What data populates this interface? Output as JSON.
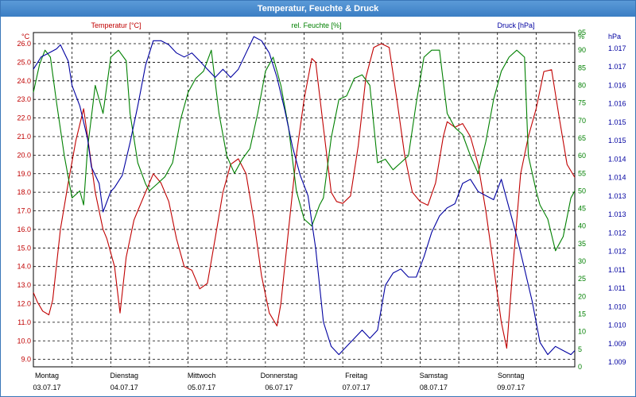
{
  "window": {
    "title": "Temperatur, Feuchte & Druck"
  },
  "colors": {
    "temperature": "#c00000",
    "humidity": "#008000",
    "pressure": "#0000a0",
    "grid": "#000000",
    "titlebar": "#3b7ec4"
  },
  "chart_data": {
    "type": "line",
    "title": "Temperatur, Feuchte & Druck",
    "grid": true,
    "days": [
      {
        "name": "Montag",
        "date": "03.07.17"
      },
      {
        "name": "Dienstag",
        "date": "04.07.17"
      },
      {
        "name": "Mittwoch",
        "date": "05.07.17"
      },
      {
        "name": "Donnerstag",
        "date": "06.07.17"
      },
      {
        "name": "Freitag",
        "date": "07.07.17"
      },
      {
        "name": "Samstag",
        "date": "08.07.17"
      },
      {
        "name": "Sonntag",
        "date": "09.07.17"
      }
    ],
    "x_unit": "day index (0 = 03.07.17 00:00)",
    "xlim": [
      0,
      7
    ],
    "axes": {
      "temperature": {
        "label": "Temperatur [°C]",
        "unit": "°C",
        "ylim": [
          8.6,
          26.6
        ],
        "ticks": [
          "9.0",
          "10.0",
          "11.0",
          "12.0",
          "13.0",
          "14.0",
          "15.0",
          "16.0",
          "17.0",
          "18.0",
          "19.0",
          "20.0",
          "21.0",
          "22.0",
          "23.0",
          "24.0",
          "25.0",
          "26.0"
        ]
      },
      "humidity": {
        "label": "rel. Feuchte [%]",
        "unit": "%",
        "ylim": [
          0,
          95
        ],
        "ticks": [
          "0",
          "5",
          "10",
          "15",
          "20",
          "25",
          "30",
          "35",
          "40",
          "45",
          "50",
          "55",
          "60",
          "65",
          "70",
          "75",
          "80",
          "85",
          "90",
          "95"
        ]
      },
      "pressure": {
        "label": "Druck [hPa]",
        "unit": "hPa",
        "ylim": [
          1008.9,
          1017.1
        ],
        "ticks": [
          "1.009",
          "1.009",
          "1.010",
          "1.010",
          "1.011",
          "1.011",
          "1.012",
          "1.012",
          "1.013",
          "1.013",
          "1.014",
          "1.014",
          "1.015",
          "1.015",
          "1.016",
          "1.016",
          "1.017",
          "1.017"
        ]
      }
    },
    "series": [
      {
        "name": "Temperatur [°C]",
        "axis": "temperature",
        "x": [
          0,
          0.05,
          0.12,
          0.2,
          0.25,
          0.35,
          0.45,
          0.55,
          0.65,
          0.7,
          0.8,
          0.9,
          0.95,
          1.05,
          1.12,
          1.2,
          1.3,
          1.35,
          1.45,
          1.55,
          1.65,
          1.75,
          1.85,
          1.95,
          2.05,
          2.15,
          2.25,
          2.35,
          2.45,
          2.55,
          2.65,
          2.75,
          2.85,
          2.95,
          3.05,
          3.15,
          3.2,
          3.3,
          3.4,
          3.5,
          3.6,
          3.65,
          3.75,
          3.85,
          3.92,
          4.0,
          4.1,
          4.2,
          4.3,
          4.4,
          4.5,
          4.6,
          4.7,
          4.8,
          4.9,
          5.0,
          5.1,
          5.2,
          5.3,
          5.35,
          5.45,
          5.55,
          5.65,
          5.75,
          5.85,
          5.95,
          6.05,
          6.12,
          6.2,
          6.3,
          6.4,
          6.5,
          6.6,
          6.7,
          6.8,
          6.9,
          7.0
        ],
        "values": [
          12.6,
          12.1,
          11.6,
          11.4,
          12.2,
          16.0,
          18.5,
          20.8,
          22.5,
          21.0,
          18.0,
          16.0,
          15.5,
          14.0,
          11.5,
          14.5,
          16.5,
          17.0,
          18.0,
          19.0,
          18.5,
          17.5,
          15.5,
          14.0,
          13.8,
          12.8,
          13.1,
          15.5,
          18.0,
          19.5,
          19.8,
          19.0,
          16.5,
          13.5,
          11.5,
          10.8,
          12.0,
          16.0,
          20.0,
          23.0,
          25.2,
          25.0,
          21.5,
          18.0,
          17.5,
          17.4,
          17.8,
          20.5,
          24.2,
          25.8,
          26.0,
          25.8,
          23.0,
          20.0,
          18.0,
          17.5,
          17.3,
          18.5,
          21.0,
          21.8,
          21.5,
          21.7,
          21.0,
          19.5,
          17.0,
          14.0,
          11.0,
          9.6,
          14.0,
          19.0,
          21.0,
          22.5,
          24.5,
          24.6,
          22.0,
          19.5,
          18.8
        ]
      },
      {
        "name": "rel. Feuchte [%]",
        "axis": "humidity",
        "x": [
          0,
          0.08,
          0.15,
          0.22,
          0.3,
          0.4,
          0.5,
          0.6,
          0.65,
          0.7,
          0.8,
          0.9,
          1.0,
          1.1,
          1.2,
          1.25,
          1.35,
          1.45,
          1.5,
          1.6,
          1.7,
          1.8,
          1.9,
          2.0,
          2.1,
          2.2,
          2.3,
          2.4,
          2.5,
          2.6,
          2.7,
          2.8,
          2.9,
          3.0,
          3.1,
          3.2,
          3.3,
          3.4,
          3.5,
          3.6,
          3.7,
          3.75,
          3.85,
          3.95,
          4.05,
          4.15,
          4.25,
          4.35,
          4.45,
          4.55,
          4.65,
          4.75,
          4.85,
          4.95,
          5.05,
          5.15,
          5.25,
          5.35,
          5.45,
          5.55,
          5.65,
          5.75,
          5.85,
          5.95,
          6.05,
          6.15,
          6.25,
          6.35,
          6.4,
          6.5,
          6.55,
          6.65,
          6.75,
          6.85,
          6.95,
          7.0
        ],
        "values": [
          78,
          86,
          90,
          88,
          75,
          60,
          48,
          50,
          46,
          62,
          80,
          72,
          88,
          90,
          87,
          72,
          58,
          52,
          50,
          52,
          54,
          58,
          70,
          78,
          82,
          84,
          90,
          72,
          60,
          55,
          59,
          62,
          72,
          84,
          88,
          80,
          68,
          50,
          42,
          40,
          46,
          48,
          65,
          76,
          77,
          82,
          83,
          80,
          58,
          59,
          56,
          58,
          60,
          75,
          88,
          90,
          90,
          72,
          68,
          66,
          60,
          55,
          64,
          76,
          84,
          88,
          90,
          88,
          60,
          50,
          46,
          42,
          33,
          37,
          48,
          50
        ]
      },
      {
        "name": "Druck [hPa]",
        "axis": "pressure",
        "x": [
          0,
          0.1,
          0.2,
          0.3,
          0.35,
          0.45,
          0.5,
          0.6,
          0.7,
          0.75,
          0.85,
          0.9,
          1.0,
          1.05,
          1.15,
          1.25,
          1.35,
          1.45,
          1.55,
          1.65,
          1.75,
          1.85,
          1.95,
          2.05,
          2.15,
          2.25,
          2.35,
          2.45,
          2.55,
          2.65,
          2.75,
          2.85,
          2.95,
          3.05,
          3.15,
          3.25,
          3.35,
          3.45,
          3.55,
          3.65,
          3.75,
          3.85,
          3.95,
          4.05,
          4.15,
          4.25,
          4.35,
          4.45,
          4.55,
          4.65,
          4.75,
          4.85,
          4.95,
          5.05,
          5.15,
          5.25,
          5.35,
          5.45,
          5.55,
          5.65,
          5.75,
          5.85,
          5.95,
          6.05,
          6.15,
          6.25,
          6.35,
          6.45,
          6.55,
          6.65,
          6.75,
          6.85,
          6.95,
          7.0
        ],
        "values": [
          1016.2,
          1016.5,
          1016.6,
          1016.7,
          1016.8,
          1016.4,
          1015.8,
          1015.3,
          1014.5,
          1013.8,
          1013.4,
          1012.7,
          1013.2,
          1013.3,
          1013.6,
          1014.4,
          1015.3,
          1016.3,
          1016.9,
          1016.9,
          1016.8,
          1016.6,
          1016.5,
          1016.6,
          1016.4,
          1016.2,
          1016.0,
          1016.2,
          1016.0,
          1016.2,
          1016.6,
          1017.0,
          1016.9,
          1016.6,
          1016.0,
          1015.2,
          1014.3,
          1013.6,
          1013.1,
          1011.8,
          1010.0,
          1009.4,
          1009.2,
          1009.4,
          1009.6,
          1009.8,
          1009.6,
          1009.8,
          1010.9,
          1011.2,
          1011.3,
          1011.1,
          1011.1,
          1011.6,
          1012.2,
          1012.6,
          1012.8,
          1012.9,
          1013.4,
          1013.5,
          1013.2,
          1013.1,
          1013.0,
          1013.5,
          1012.8,
          1012.1,
          1011.3,
          1010.5,
          1009.5,
          1009.2,
          1009.4,
          1009.3,
          1009.2,
          1009.3
        ]
      }
    ]
  }
}
